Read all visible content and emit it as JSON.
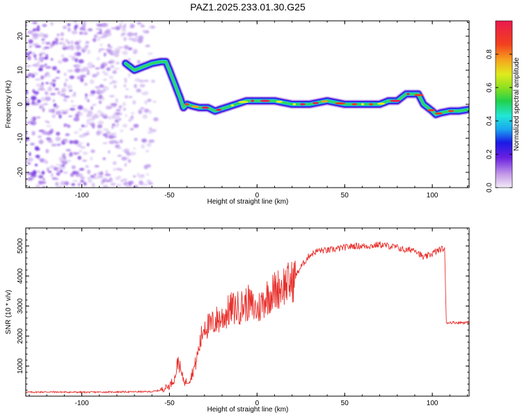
{
  "figure_title": "PAZ1.2025.233.01.30.G25",
  "chart_data": [
    {
      "type": "heatmap",
      "title": "PAZ1.2025.233.01.30.G25",
      "xlabel": "Height of straight line (km)",
      "ylabel": "Frequency (Hz)",
      "xlim": [
        -132,
        121
      ],
      "ylim": [
        -24.5,
        24.5
      ],
      "xticks": [
        -100,
        -50,
        0,
        50,
        100
      ],
      "yticks": [
        -20,
        -10,
        0,
        10,
        20
      ],
      "ridge": {
        "x": [
          -75,
          -70,
          -65,
          -60,
          -55,
          -52,
          -50,
          -47,
          -44,
          -42,
          -40,
          -37,
          -33,
          -28,
          -24,
          -18,
          -12,
          -6,
          0,
          10,
          20,
          30,
          40,
          50,
          60,
          70,
          75,
          80,
          85,
          88,
          92,
          95,
          100,
          102,
          105,
          110,
          115,
          121
        ],
        "y": [
          12,
          10,
          11,
          12,
          12.5,
          12.5,
          10,
          6,
          2,
          -1,
          0,
          -0.5,
          -1,
          -1,
          -2,
          -1,
          0,
          1,
          1,
          1,
          0,
          0,
          1,
          0,
          0,
          0,
          1,
          1,
          3,
          3,
          3,
          0,
          -2,
          -3,
          -2.5,
          -2,
          -2,
          -1.5
        ]
      },
      "noise_region_km": [
        -132,
        -55
      ],
      "colorbar": {
        "label": "Normalized spectral amplitude",
        "ticks": [
          "0.0",
          "0.2",
          "0.4",
          "0.6",
          "0.8"
        ],
        "range": [
          0,
          1
        ]
      }
    },
    {
      "type": "line",
      "xlabel": "Height of straight line (km)",
      "ylabel": "SNR (10 * v/v)",
      "xlim": [
        -132,
        121
      ],
      "ylim": [
        0,
        5600
      ],
      "xticks": [
        -100,
        -50,
        0,
        50,
        100
      ],
      "yticks": [
        1000,
        2000,
        3000,
        4000,
        5000
      ],
      "series": [
        {
          "name": "SNR",
          "color": "#e8302c",
          "x": [
            -132,
            -120,
            -100,
            -80,
            -60,
            -55,
            -50,
            -47,
            -45,
            -43,
            -41,
            -38,
            -35,
            -32,
            -30,
            -27,
            -24,
            -20,
            -15,
            -10,
            -5,
            0,
            5,
            10,
            15,
            20,
            25,
            30,
            35,
            40,
            45,
            50,
            55,
            60,
            65,
            70,
            75,
            80,
            85,
            90,
            95,
            100,
            105,
            107,
            108,
            110,
            115,
            121
          ],
          "y": [
            130,
            140,
            130,
            140,
            150,
            200,
            350,
            600,
            1200,
            700,
            450,
            600,
            1100,
            1900,
            2400,
            2300,
            2500,
            2600,
            2900,
            2950,
            3100,
            2850,
            3300,
            3500,
            3700,
            3800,
            4300,
            4700,
            4850,
            4850,
            4900,
            4950,
            5000,
            5000,
            5000,
            5050,
            5000,
            4950,
            4850,
            4900,
            4600,
            4750,
            4900,
            4900,
            2450,
            2450,
            2450,
            2450
          ]
        }
      ]
    }
  ]
}
